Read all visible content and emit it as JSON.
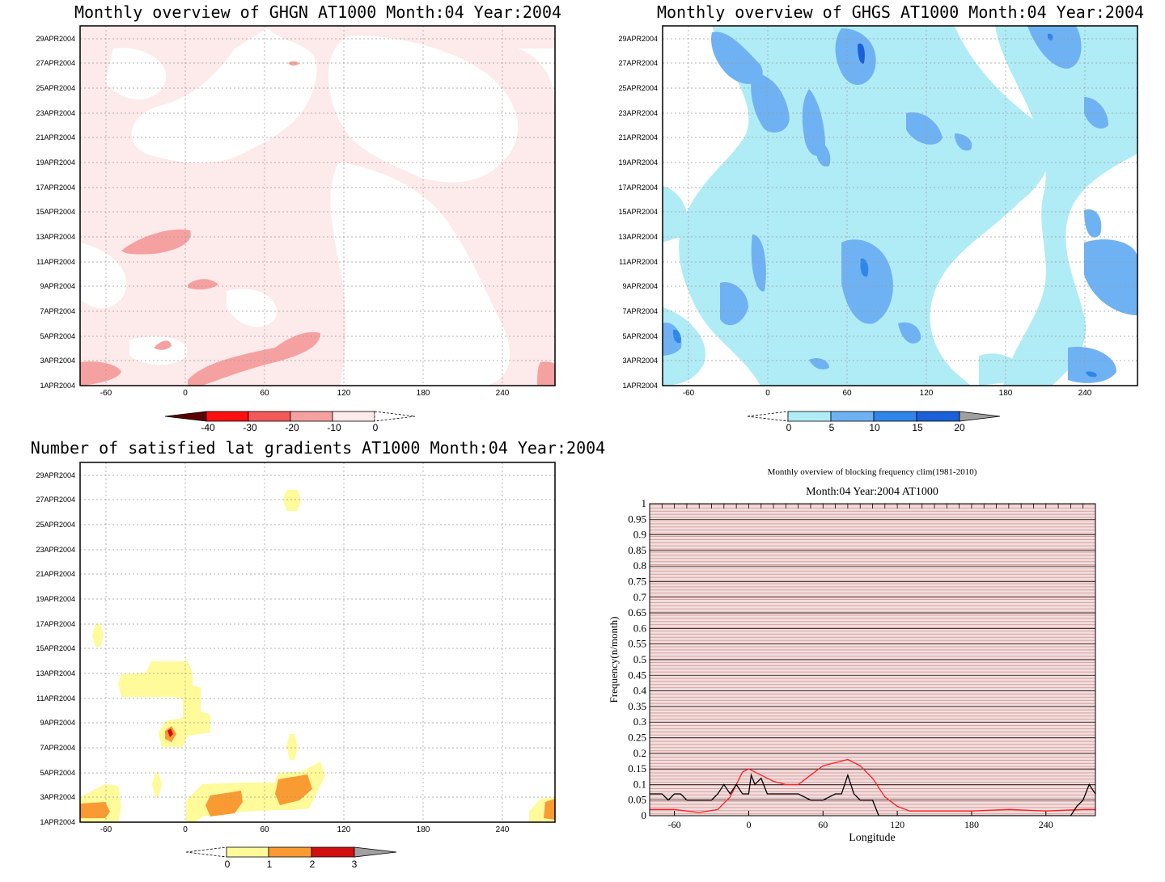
{
  "panels": {
    "ghgn": {
      "title": "Monthly overview of GHGN AT1000 Month:04 Year:2004",
      "colorbar": {
        "labels": [
          "-40",
          "-30",
          "-20",
          "-10",
          "0"
        ],
        "colors": [
          "#5a0000",
          "#ff1010",
          "#f25a5a",
          "#f6a1a1",
          "#fdeaea"
        ]
      }
    },
    "ghgs": {
      "title": "Monthly overview of GHGS AT1000 Month:04 Year:2004",
      "colorbar": {
        "labels": [
          "0",
          "5",
          "10",
          "15",
          "20"
        ],
        "colors": [
          "#b0ecf6",
          "#6fb2f3",
          "#2f86ea",
          "#1a60d8",
          "#a0a0a0"
        ]
      }
    },
    "grad": {
      "title": "Number of satisfied lat gradients AT1000 Month:04 Year:2004",
      "colorbar": {
        "labels": [
          "0",
          "1",
          "2",
          "3"
        ],
        "colors": [
          "#fffa9a",
          "#fa9a32",
          "#d01010",
          "#a0a0a0"
        ]
      }
    },
    "freq": {
      "suptitle": "Monthly overview of blocking frequency clim(1981-2010)",
      "title": "Month:04 Year:2004  AT1000",
      "xlabel": "Longitude",
      "ylabel": "Frequency(n/month)"
    }
  },
  "hovmoller_axes": {
    "x_ticks": [
      "-60",
      "0",
      "60",
      "120",
      "180",
      "240"
    ],
    "x_tick_values": [
      -60,
      0,
      60,
      120,
      180,
      240
    ],
    "xlim": [
      -80,
      280
    ],
    "y_ticks": [
      "1APR2004",
      "3APR2004",
      "5APR2004",
      "7APR2004",
      "9APR2004",
      "11APR2004",
      "13APR2004",
      "15APR2004",
      "17APR2004",
      "19APR2004",
      "21APR2004",
      "23APR2004",
      "25APR2004",
      "27APR2004",
      "29APR2004"
    ]
  },
  "chart_data": [
    {
      "type": "heatmap",
      "title": "Monthly overview of GHGN AT1000 Month:04 Year:2004",
      "x_ticks": [
        -60,
        0,
        60,
        120,
        180,
        240
      ],
      "y_ticks": [
        "1APR2004",
        "3APR2004",
        "5APR2004",
        "7APR2004",
        "9APR2004",
        "11APR2004",
        "13APR2004",
        "15APR2004",
        "17APR2004",
        "19APR2004",
        "21APR2004",
        "23APR2004",
        "25APR2004",
        "27APR2004",
        "29APR2004"
      ],
      "colorbar_levels": [
        -40,
        -30,
        -20,
        -10,
        0
      ]
    },
    {
      "type": "heatmap",
      "title": "Monthly overview of GHGS AT1000 Month:04 Year:2004",
      "x_ticks": [
        -60,
        0,
        60,
        120,
        180,
        240
      ],
      "y_ticks": [
        "1APR2004",
        "3APR2004",
        "5APR2004",
        "7APR2004",
        "9APR2004",
        "11APR2004",
        "13APR2004",
        "15APR2004",
        "17APR2004",
        "19APR2004",
        "21APR2004",
        "23APR2004",
        "25APR2004",
        "27APR2004",
        "29APR2004"
      ],
      "colorbar_levels": [
        0,
        5,
        10,
        15,
        20
      ]
    },
    {
      "type": "heatmap",
      "title": "Number of satisfied lat gradients AT1000 Month:04 Year:2004",
      "x_ticks": [
        -60,
        0,
        60,
        120,
        180,
        240
      ],
      "y_ticks": [
        "1APR2004",
        "3APR2004",
        "5APR2004",
        "7APR2004",
        "9APR2004",
        "11APR2004",
        "13APR2004",
        "15APR2004",
        "17APR2004",
        "19APR2004",
        "21APR2004",
        "23APR2004",
        "25APR2004",
        "27APR2004",
        "29APR2004"
      ],
      "colorbar_levels": [
        0,
        1,
        2,
        3
      ]
    },
    {
      "type": "line",
      "title": "Month:04 Year:2004  AT1000",
      "subtitle": "Monthly overview of blocking frequency clim(1981-2010)",
      "xlabel": "Longitude",
      "ylabel": "Frequency(n/month)",
      "xlim": [
        -80,
        280
      ],
      "ylim": [
        0,
        1
      ],
      "x_ticks": [
        -60,
        0,
        60,
        120,
        180,
        240
      ],
      "y_ticks": [
        0,
        0.05,
        0.1,
        0.15,
        0.2,
        0.25,
        0.3,
        0.35,
        0.4,
        0.45,
        0.5,
        0.55,
        0.6,
        0.65,
        0.7,
        0.75,
        0.8,
        0.85,
        0.9,
        0.95,
        1
      ],
      "series": [
        {
          "color": "#ff2020",
          "x": [
            -80,
            -60,
            -40,
            -25,
            -15,
            -10,
            -5,
            0,
            10,
            20,
            30,
            40,
            50,
            60,
            70,
            80,
            90,
            100,
            110,
            120,
            130,
            150,
            180,
            210,
            240,
            270,
            280
          ],
          "values": [
            0.02,
            0.02,
            0.01,
            0.02,
            0.06,
            0.1,
            0.14,
            0.15,
            0.13,
            0.11,
            0.1,
            0.1,
            0.13,
            0.16,
            0.17,
            0.18,
            0.16,
            0.12,
            0.06,
            0.03,
            0.015,
            0.015,
            0.015,
            0.02,
            0.015,
            0.02,
            0.02
          ]
        },
        {
          "color": "#000000",
          "x": [
            -80,
            -70,
            -65,
            -60,
            -55,
            -50,
            -40,
            -30,
            -25,
            -20,
            -15,
            -10,
            -5,
            0,
            2,
            5,
            10,
            15,
            20,
            25,
            30,
            40,
            50,
            60,
            70,
            75,
            80,
            85,
            90,
            100,
            105,
            110,
            120,
            240,
            260,
            265,
            270,
            275,
            280
          ],
          "values": [
            0.07,
            0.07,
            0.05,
            0.07,
            0.07,
            0.05,
            0.05,
            0.05,
            0.07,
            0.1,
            0.07,
            0.1,
            0.07,
            0.07,
            0.13,
            0.1,
            0.12,
            0.07,
            0.07,
            0.07,
            0.07,
            0.07,
            0.05,
            0.05,
            0.07,
            0.07,
            0.13,
            0.07,
            0.05,
            0.05,
            0.0,
            0.0,
            0.0,
            0.0,
            0.0,
            0.03,
            0.05,
            0.1,
            0.07
          ]
        }
      ]
    }
  ]
}
